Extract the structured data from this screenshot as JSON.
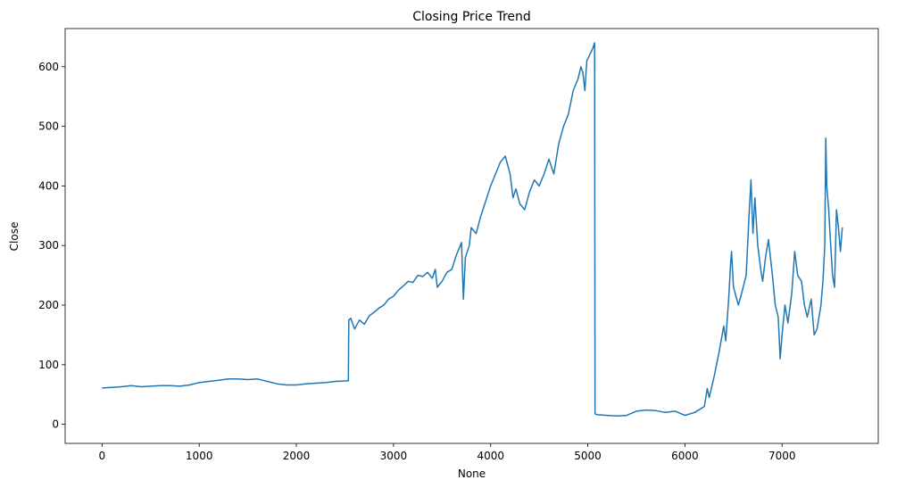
{
  "chart_data": {
    "type": "line",
    "title": "Closing Price Trend",
    "xlabel": "None",
    "ylabel": "Close",
    "xlim": [
      -380,
      7990
    ],
    "ylim": [
      -32,
      664
    ],
    "xticks": [
      0,
      1000,
      2000,
      3000,
      4000,
      5000,
      6000,
      7000
    ],
    "yticks": [
      0,
      100,
      200,
      300,
      400,
      500,
      600
    ],
    "grid": false,
    "color": "#1f77b4",
    "series": [
      {
        "x": [
          0,
          100,
          200,
          300,
          400,
          500,
          600,
          700,
          800,
          900,
          1000,
          1100,
          1200,
          1300,
          1400,
          1500,
          1600,
          1700,
          1800,
          1900,
          2000,
          2100,
          2200,
          2300,
          2400,
          2535,
          2540,
          2560,
          2600,
          2650,
          2700,
          2750,
          2800,
          2850,
          2900,
          2950,
          3000,
          3050,
          3100,
          3150,
          3200,
          3250,
          3300,
          3350,
          3400,
          3430,
          3450,
          3500,
          3550,
          3600,
          3650,
          3700,
          3720,
          3740,
          3780,
          3800,
          3850,
          3900,
          3950,
          4000,
          4050,
          4100,
          4150,
          4200,
          4230,
          4260,
          4300,
          4350,
          4400,
          4450,
          4500,
          4550,
          4600,
          4650,
          4700,
          4750,
          4800,
          4850,
          4900,
          4930,
          4950,
          4970,
          4990,
          5020,
          5050,
          5070,
          5075,
          5080,
          5100,
          5200,
          5300,
          5400,
          5500,
          5600,
          5700,
          5800,
          5900,
          6000,
          6100,
          6200,
          6230,
          6250,
          6300,
          6350,
          6400,
          6420,
          6450,
          6470,
          6480,
          6500,
          6550,
          6600,
          6630,
          6660,
          6680,
          6700,
          6720,
          6750,
          6780,
          6800,
          6830,
          6860,
          6900,
          6930,
          6960,
          6980,
          7000,
          7030,
          7060,
          7100,
          7130,
          7160,
          7200,
          7230,
          7260,
          7300,
          7330,
          7360,
          7400,
          7420,
          7440,
          7450,
          7460,
          7480,
          7500,
          7520,
          7540,
          7560,
          7580,
          7600,
          7620
        ],
        "y": [
          61,
          62,
          63,
          65,
          63,
          64,
          65,
          65,
          64,
          66,
          70,
          72,
          74,
          76,
          76,
          75,
          76,
          72,
          68,
          66,
          66,
          68,
          69,
          70,
          72,
          73,
          175,
          178,
          160,
          175,
          168,
          182,
          188,
          195,
          200,
          210,
          215,
          225,
          232,
          240,
          238,
          250,
          248,
          255,
          245,
          260,
          230,
          240,
          255,
          260,
          285,
          305,
          210,
          280,
          300,
          330,
          320,
          350,
          375,
          400,
          420,
          440,
          450,
          420,
          380,
          395,
          370,
          360,
          390,
          410,
          400,
          420,
          445,
          420,
          470,
          500,
          520,
          560,
          580,
          600,
          590,
          560,
          610,
          620,
          630,
          640,
          18,
          17,
          16,
          15,
          14,
          15,
          22,
          24,
          23,
          20,
          22,
          15,
          20,
          30,
          60,
          45,
          80,
          120,
          165,
          140,
          210,
          270,
          290,
          230,
          200,
          230,
          250,
          350,
          410,
          320,
          380,
          300,
          260,
          240,
          280,
          310,
          250,
          200,
          180,
          110,
          150,
          200,
          170,
          220,
          290,
          250,
          240,
          200,
          180,
          210,
          150,
          160,
          200,
          240,
          300,
          480,
          400,
          360,
          300,
          250,
          230,
          360,
          330,
          290,
          330
        ]
      }
    ]
  }
}
